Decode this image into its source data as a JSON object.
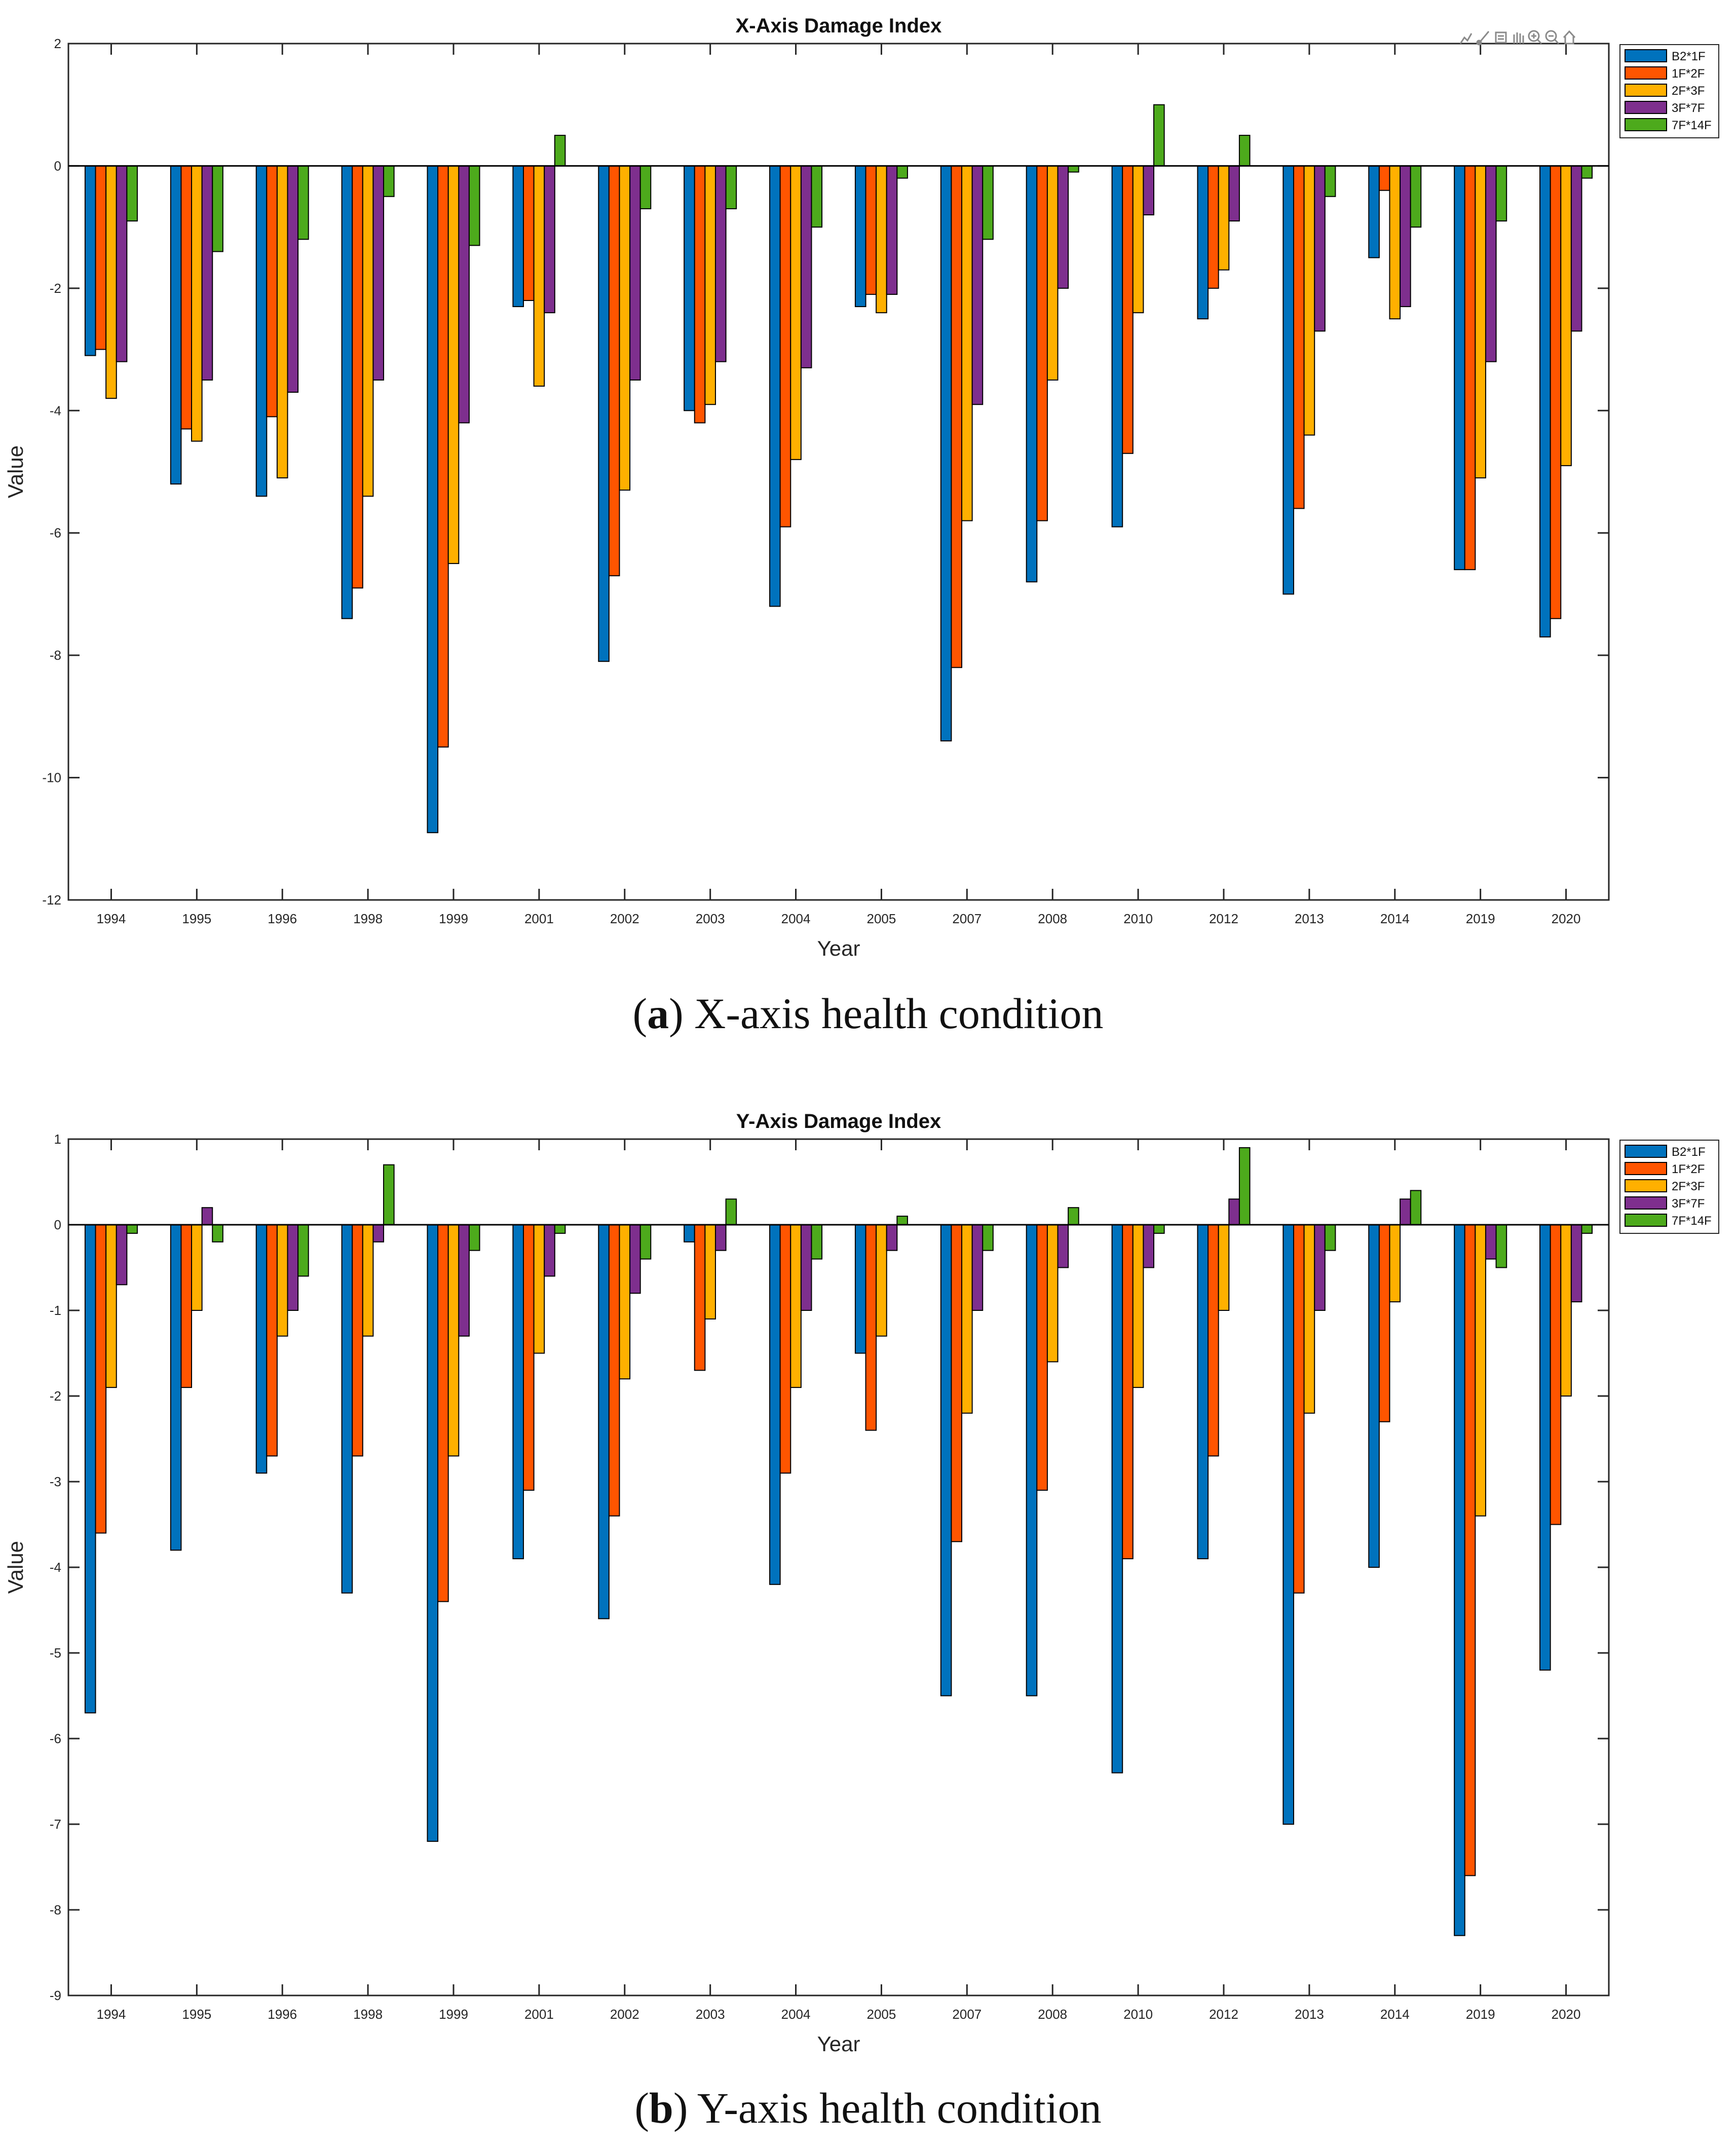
{
  "chart_data": [
    {
      "type": "bar",
      "title": "X-Axis Damage Index",
      "xlabel": "Year",
      "ylabel": "Value",
      "ylim": [
        -12,
        2
      ],
      "yticks": [
        2,
        0,
        -2,
        -4,
        -6,
        -8,
        -10,
        -12
      ],
      "legend_position": "top-right",
      "categories": [
        "1994",
        "1995",
        "1996",
        "1998",
        "1999",
        "2001",
        "2002",
        "2003",
        "2004",
        "2005",
        "2007",
        "2008",
        "2010",
        "2012",
        "2013",
        "2014",
        "2019",
        "2020"
      ],
      "series": [
        {
          "name": "B2*1F",
          "color": "#0072BD",
          "values": [
            -3.1,
            -5.2,
            -5.4,
            -7.4,
            -10.9,
            -2.3,
            -8.1,
            -4.0,
            -7.2,
            -2.3,
            -9.4,
            -6.8,
            -5.9,
            -2.5,
            -7.0,
            -1.5,
            -6.6,
            -7.7
          ]
        },
        {
          "name": "1F*2F",
          "color": "#FF5500",
          "values": [
            -3.0,
            -4.3,
            -4.1,
            -6.9,
            -9.5,
            -2.2,
            -6.7,
            -4.2,
            -5.9,
            -2.1,
            -8.2,
            -5.8,
            -4.7,
            -2.0,
            -5.6,
            -0.4,
            -6.6,
            -7.4
          ]
        },
        {
          "name": "2F*3F",
          "color": "#FFB000",
          "values": [
            -3.8,
            -4.5,
            -5.1,
            -5.4,
            -6.5,
            -3.6,
            -5.3,
            -3.9,
            -4.8,
            -2.4,
            -5.8,
            -3.5,
            -2.4,
            -1.7,
            -4.4,
            -2.5,
            -5.1,
            -4.9
          ]
        },
        {
          "name": "3F*7F",
          "color": "#7E2F8E",
          "values": [
            -3.2,
            -3.5,
            -3.7,
            -3.5,
            -4.2,
            -2.4,
            -3.5,
            -3.2,
            -3.3,
            -2.1,
            -3.9,
            -2.0,
            -0.8,
            -0.9,
            -2.7,
            -2.3,
            -3.2,
            -2.7
          ]
        },
        {
          "name": "7F*14F",
          "color": "#4DAA1C",
          "values": [
            -0.9,
            -1.4,
            -1.2,
            -0.5,
            -1.3,
            0.5,
            -0.7,
            -0.7,
            -1.0,
            -0.2,
            -1.2,
            -0.1,
            1.0,
            0.5,
            -0.5,
            -1.0,
            -0.9,
            -0.2
          ]
        }
      ],
      "caption_letter": "a",
      "caption_text": "X-axis health condition"
    },
    {
      "type": "bar",
      "title": "Y-Axis Damage Index",
      "xlabel": "Year",
      "ylabel": "Value",
      "ylim": [
        -9,
        1
      ],
      "yticks": [
        1,
        0,
        -1,
        -2,
        -3,
        -4,
        -5,
        -6,
        -7,
        -8,
        -9
      ],
      "legend_position": "top-right",
      "categories": [
        "1994",
        "1995",
        "1996",
        "1998",
        "1999",
        "2001",
        "2002",
        "2003",
        "2004",
        "2005",
        "2007",
        "2008",
        "2010",
        "2012",
        "2013",
        "2014",
        "2019",
        "2020"
      ],
      "series": [
        {
          "name": "B2*1F",
          "color": "#0072BD",
          "values": [
            -5.7,
            -3.8,
            -2.9,
            -4.3,
            -7.2,
            -3.9,
            -4.6,
            -0.2,
            -4.2,
            -1.5,
            -5.5,
            -5.5,
            -6.4,
            -3.9,
            -7.0,
            -4.0,
            -8.3,
            -5.2
          ]
        },
        {
          "name": "1F*2F",
          "color": "#FF5500",
          "values": [
            -3.6,
            -1.9,
            -2.7,
            -2.7,
            -4.4,
            -3.1,
            -3.4,
            -1.7,
            -2.9,
            -2.4,
            -3.7,
            -3.1,
            -3.9,
            -2.7,
            -4.3,
            -2.3,
            -7.6,
            -3.5
          ]
        },
        {
          "name": "2F*3F",
          "color": "#FFB000",
          "values": [
            -1.9,
            -1.0,
            -1.3,
            -1.3,
            -2.7,
            -1.5,
            -1.8,
            -1.1,
            -1.9,
            -1.3,
            -2.2,
            -1.6,
            -1.9,
            -1.0,
            -2.2,
            -0.9,
            -3.4,
            -2.0
          ]
        },
        {
          "name": "3F*7F",
          "color": "#7E2F8E",
          "values": [
            -0.7,
            0.2,
            -1.0,
            -0.2,
            -1.3,
            -0.6,
            -0.8,
            -0.3,
            -1.0,
            -0.3,
            -1.0,
            -0.5,
            -0.5,
            0.3,
            -1.0,
            0.3,
            -0.4,
            -0.9
          ]
        },
        {
          "name": "7F*14F",
          "color": "#4DAA1C",
          "values": [
            -0.1,
            -0.2,
            -0.6,
            0.7,
            -0.3,
            -0.1,
            -0.4,
            0.3,
            -0.4,
            0.1,
            -0.3,
            0.2,
            -0.1,
            0.9,
            -0.3,
            0.4,
            -0.5,
            -0.1
          ]
        }
      ],
      "caption_letter": "b",
      "caption_text": "Y-axis health condition"
    }
  ]
}
